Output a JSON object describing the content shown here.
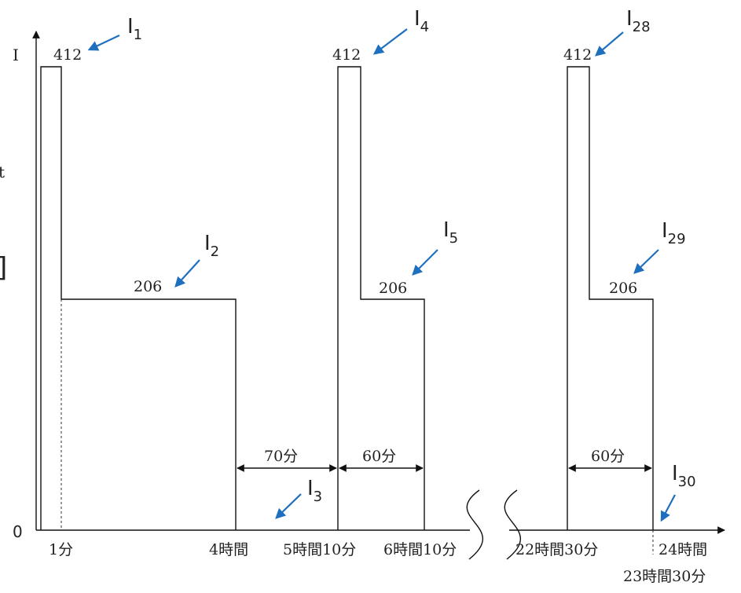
{
  "y_axis": {
    "label": "I",
    "zero_label": "0",
    "left_edge_fragments": [
      "t",
      "]"
    ]
  },
  "level_labels": {
    "peak": "412",
    "sustained": "206"
  },
  "time_labels": {
    "t_1min": "1分",
    "t_4h": "4時間",
    "t_5h10": "5時間10分",
    "t_6h10": "6時間10分",
    "t_22h30": "22時間30分",
    "t_23h30": "23時間30分",
    "t_24h": "24時間"
  },
  "durations": {
    "gap_70": "70分",
    "width_60_a": "60分",
    "width_60_b": "60分"
  },
  "segments": [
    {
      "id": "I",
      "sub": "1"
    },
    {
      "id": "I",
      "sub": "2"
    },
    {
      "id": "I",
      "sub": "3"
    },
    {
      "id": "I",
      "sub": "4"
    },
    {
      "id": "I",
      "sub": "5"
    },
    {
      "id": "I",
      "sub": "28"
    },
    {
      "id": "I",
      "sub": "29"
    },
    {
      "id": "I",
      "sub": "30"
    }
  ],
  "colors": {
    "line": "#111111",
    "callout_arrow": "#1f6fbf"
  }
}
